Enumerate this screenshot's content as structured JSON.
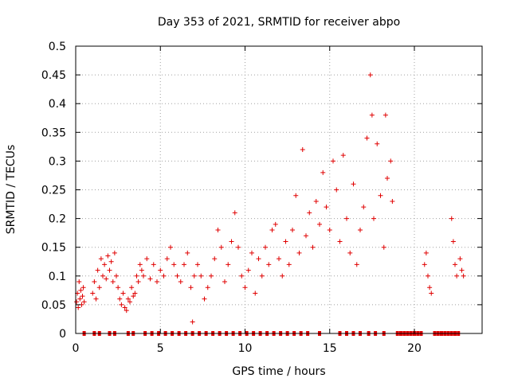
{
  "chart_data": {
    "type": "scatter",
    "title": "Day 353 of 2021, SRMTID for receiver abpo",
    "xlabel": "GPS time / hours",
    "ylabel": "SRMTID / TECUs",
    "xlim": [
      0,
      24
    ],
    "ylim": [
      0,
      0.5
    ],
    "x_ticks": [
      0,
      5,
      10,
      15,
      20
    ],
    "x_tick_labels": [
      "0",
      "5",
      "10",
      "15",
      "20"
    ],
    "y_ticks": [
      0,
      0.05,
      0.1,
      0.15,
      0.2,
      0.25,
      0.3,
      0.35,
      0.4,
      0.45,
      0.5
    ],
    "y_tick_labels": [
      "0",
      "0.05",
      "0.1",
      "0.15",
      "0.2",
      "0.25",
      "0.3",
      "0.35",
      "0.4",
      "0.45",
      "0.5"
    ],
    "grid": true,
    "marker": "plus",
    "series_color": "#e00000",
    "series": [
      {
        "name": "SRMTID",
        "points": [
          [
            0.05,
            0.055
          ],
          [
            0.1,
            0.07
          ],
          [
            0.15,
            0.045
          ],
          [
            0.2,
            0.09
          ],
          [
            0.25,
            0.06
          ],
          [
            0.3,
            0.075
          ],
          [
            0.35,
            0.05
          ],
          [
            0.4,
            0.065
          ],
          [
            0.45,
            0.08
          ],
          [
            0.5,
            0.055
          ],
          [
            1.0,
            0.07
          ],
          [
            1.1,
            0.09
          ],
          [
            1.2,
            0.06
          ],
          [
            1.3,
            0.11
          ],
          [
            1.4,
            0.08
          ],
          [
            1.5,
            0.13
          ],
          [
            1.6,
            0.1
          ],
          [
            1.7,
            0.12
          ],
          [
            1.8,
            0.095
          ],
          [
            1.9,
            0.135
          ],
          [
            2.0,
            0.11
          ],
          [
            2.1,
            0.125
          ],
          [
            2.2,
            0.09
          ],
          [
            2.3,
            0.14
          ],
          [
            2.4,
            0.1
          ],
          [
            2.5,
            0.08
          ],
          [
            2.6,
            0.06
          ],
          [
            2.7,
            0.05
          ],
          [
            2.8,
            0.07
          ],
          [
            2.9,
            0.045
          ],
          [
            3.0,
            0.04
          ],
          [
            3.1,
            0.06
          ],
          [
            3.2,
            0.055
          ],
          [
            3.3,
            0.08
          ],
          [
            3.4,
            0.065
          ],
          [
            3.5,
            0.07
          ],
          [
            3.6,
            0.1
          ],
          [
            3.7,
            0.09
          ],
          [
            3.8,
            0.12
          ],
          [
            3.9,
            0.11
          ],
          [
            4.0,
            0.1
          ],
          [
            4.2,
            0.13
          ],
          [
            4.4,
            0.095
          ],
          [
            4.6,
            0.12
          ],
          [
            4.8,
            0.09
          ],
          [
            5.0,
            0.11
          ],
          [
            5.2,
            0.1
          ],
          [
            5.4,
            0.13
          ],
          [
            5.6,
            0.15
          ],
          [
            5.8,
            0.12
          ],
          [
            6.0,
            0.1
          ],
          [
            6.2,
            0.09
          ],
          [
            6.4,
            0.12
          ],
          [
            6.6,
            0.14
          ],
          [
            6.8,
            0.08
          ],
          [
            6.9,
            0.02
          ],
          [
            7.0,
            0.1
          ],
          [
            7.2,
            0.12
          ],
          [
            7.4,
            0.1
          ],
          [
            7.6,
            0.06
          ],
          [
            7.8,
            0.08
          ],
          [
            8.0,
            0.1
          ],
          [
            8.2,
            0.13
          ],
          [
            8.4,
            0.18
          ],
          [
            8.6,
            0.15
          ],
          [
            8.8,
            0.09
          ],
          [
            9.0,
            0.12
          ],
          [
            9.2,
            0.16
          ],
          [
            9.4,
            0.21
          ],
          [
            9.6,
            0.15
          ],
          [
            9.8,
            0.1
          ],
          [
            10.0,
            0.08
          ],
          [
            10.2,
            0.11
          ],
          [
            10.4,
            0.14
          ],
          [
            10.6,
            0.07
          ],
          [
            10.8,
            0.13
          ],
          [
            11.0,
            0.1
          ],
          [
            11.2,
            0.15
          ],
          [
            11.4,
            0.12
          ],
          [
            11.6,
            0.18
          ],
          [
            11.8,
            0.19
          ],
          [
            12.0,
            0.13
          ],
          [
            12.2,
            0.1
          ],
          [
            12.4,
            0.16
          ],
          [
            12.6,
            0.12
          ],
          [
            12.8,
            0.18
          ],
          [
            13.0,
            0.24
          ],
          [
            13.2,
            0.14
          ],
          [
            13.4,
            0.32
          ],
          [
            13.6,
            0.17
          ],
          [
            13.8,
            0.21
          ],
          [
            14.0,
            0.15
          ],
          [
            14.2,
            0.23
          ],
          [
            14.4,
            0.19
          ],
          [
            14.6,
            0.28
          ],
          [
            14.8,
            0.22
          ],
          [
            15.0,
            0.18
          ],
          [
            15.2,
            0.3
          ],
          [
            15.4,
            0.25
          ],
          [
            15.6,
            0.16
          ],
          [
            15.8,
            0.31
          ],
          [
            16.0,
            0.2
          ],
          [
            16.2,
            0.14
          ],
          [
            16.4,
            0.26
          ],
          [
            16.6,
            0.12
          ],
          [
            16.8,
            0.18
          ],
          [
            17.0,
            0.22
          ],
          [
            17.2,
            0.34
          ],
          [
            17.4,
            0.45
          ],
          [
            17.5,
            0.38
          ],
          [
            17.6,
            0.2
          ],
          [
            17.8,
            0.33
          ],
          [
            18.0,
            0.24
          ],
          [
            18.2,
            0.15
          ],
          [
            18.3,
            0.38
          ],
          [
            18.4,
            0.27
          ],
          [
            18.6,
            0.3
          ],
          [
            18.7,
            0.23
          ],
          [
            20.6,
            0.12
          ],
          [
            20.7,
            0.14
          ],
          [
            20.8,
            0.1
          ],
          [
            20.9,
            0.08
          ],
          [
            21.0,
            0.07
          ],
          [
            22.2,
            0.2
          ],
          [
            22.3,
            0.16
          ],
          [
            22.4,
            0.12
          ],
          [
            22.5,
            0.1
          ],
          [
            22.7,
            0.13
          ],
          [
            22.8,
            0.11
          ],
          [
            22.9,
            0.1
          ]
        ],
        "zero_markers_hours": [
          0.5,
          1.1,
          1.4,
          2.0,
          2.3,
          3.1,
          3.4,
          4.1,
          4.5,
          4.9,
          5.3,
          5.7,
          6.1,
          6.5,
          6.9,
          7.3,
          7.7,
          8.1,
          8.5,
          8.9,
          9.3,
          9.7,
          10.1,
          10.5,
          10.9,
          11.3,
          11.7,
          12.1,
          12.5,
          12.9,
          13.3,
          13.7,
          14.4,
          15.6,
          16.0,
          16.4,
          16.8,
          17.3,
          17.7,
          18.2,
          19.0,
          19.2,
          19.4,
          19.6,
          19.8,
          20.0,
          20.2,
          20.4,
          21.2,
          21.4,
          21.6,
          21.8,
          22.0,
          22.2,
          22.4,
          22.6
        ]
      }
    ]
  }
}
